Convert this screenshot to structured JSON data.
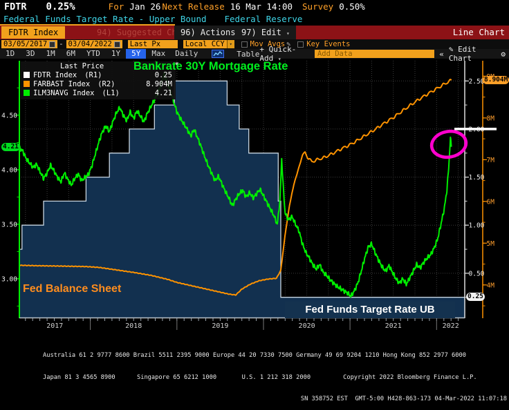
{
  "header": {
    "ticker": "FDTR",
    "last_value": "0.25%",
    "for_label": "For",
    "for_value": "Jan 26",
    "next_release_label": "Next Release",
    "next_release_value": "16 Mar 14:00",
    "survey_label": "Survey",
    "survey_value": "0.50%",
    "description": "Federal Funds Target Rate - Upper Bound",
    "source": "Federal Reserve"
  },
  "menubar": {
    "security_tab": "FDTR Index",
    "suggested_charts": "94) Suggested Charts",
    "actions": "96) Actions",
    "edit": "97) Edit",
    "chart_type": "Line Chart"
  },
  "toolbar": {
    "date_from": "03/05/2017",
    "date_to": "03/04/2022",
    "price_field": "Last Px",
    "currency": "Local CCY",
    "mov_avgs_label": "Mov Avgs",
    "key_events_label": "Key Events",
    "periods": [
      "1D",
      "3D",
      "1M",
      "6M",
      "YTD",
      "1Y",
      "5Y",
      "Max"
    ],
    "selected_period": "5Y",
    "frequency": "Daily",
    "table_label": "Table",
    "quick_add_label": "+ Quick-Add",
    "add_data_placeholder": "Add Data",
    "collapse_label": "«",
    "edit_chart_label": "✎ Edit Chart",
    "gear_icon": "⚙"
  },
  "legend": {
    "header": "Last Price",
    "items": [
      {
        "name": "FDTR Index",
        "axis": "(R1)",
        "value": "0.25",
        "color": "#ffffff"
      },
      {
        "name": "FARBAST Index",
        "axis": "(R2)",
        "value": "8.904M",
        "color": "#ff9300"
      },
      {
        "name": "ILM3NAVG Index",
        "axis": "(L1)",
        "value": "4.21",
        "color": "#00ee00"
      }
    ]
  },
  "annotations": {
    "mortgage_label": "Bankrate 30Y Mortgage Rate",
    "balance_sheet_label": "Fed Balance Sheet",
    "fdtr_label": "Fed Funds Target Rate UB",
    "highlight_circle_color": "#ff00cd",
    "white_line_level": 2.0
  },
  "chart_data": {
    "type": "line",
    "title": "FDTR Index - Line Chart",
    "x_axis": {
      "domain": [
        2017.18,
        2022.325
      ],
      "labels": [
        "2017",
        "2018",
        "2019",
        "2020",
        "2021",
        "2022"
      ]
    },
    "axes": {
      "L1": {
        "range": [
          2.645,
          4.999
        ],
        "ticks": [
          3.0,
          3.5,
          4.0,
          4.5
        ],
        "minor_step": 0.25,
        "last_price": "4.21",
        "color": "#00ee00",
        "label_color": "#f0f0f0"
      },
      "R1": {
        "range": [
          0.04,
          2.71
        ],
        "ticks": [
          0.5,
          1.0,
          1.5,
          2.0,
          2.5
        ],
        "minor_step": 0.25,
        "last_price": "0.25",
        "color": "#e0e0e0",
        "label_color": "#f0f0f0"
      },
      "R2": {
        "range": [
          3.22,
          9.37
        ],
        "tick_values": [
          4,
          5,
          6,
          7,
          8,
          9
        ],
        "tick_labels": [
          "4M",
          "5M",
          "6M",
          "7M",
          "8M",
          "9M"
        ],
        "minor_step": 0.5,
        "last_price": "8.904M",
        "color": "#ff9300",
        "label_color": "#ff9f2e"
      }
    },
    "series": [
      {
        "name": "FDTR Index",
        "axis": "R1",
        "style": "step-area",
        "line_color": "#c9d6e2",
        "fill_color": "#12304f",
        "points": [
          [
            2017.18,
            0.75
          ],
          [
            2017.21,
            1.0
          ],
          [
            2017.46,
            1.25
          ],
          [
            2017.95,
            1.5
          ],
          [
            2018.22,
            1.75
          ],
          [
            2018.45,
            2.0
          ],
          [
            2018.74,
            2.25
          ],
          [
            2018.97,
            2.5
          ],
          [
            2019.58,
            2.25
          ],
          [
            2019.72,
            2.0
          ],
          [
            2019.83,
            1.75
          ],
          [
            2020.17,
            1.25
          ],
          [
            2020.2,
            0.25
          ],
          [
            2022.33,
            0.25
          ]
        ]
      },
      {
        "name": "FARBAST Index",
        "axis": "R2",
        "style": "line",
        "line_color": "#ff9300",
        "points": [
          [
            2017.18,
            4.47
          ],
          [
            2017.4,
            4.46
          ],
          [
            2017.7,
            4.45
          ],
          [
            2017.95,
            4.44
          ],
          [
            2018.1,
            4.42
          ],
          [
            2018.3,
            4.36
          ],
          [
            2018.5,
            4.3
          ],
          [
            2018.7,
            4.23
          ],
          [
            2018.9,
            4.13
          ],
          [
            2019.0,
            4.06
          ],
          [
            2019.15,
            3.99
          ],
          [
            2019.3,
            3.92
          ],
          [
            2019.45,
            3.85
          ],
          [
            2019.6,
            3.78
          ],
          [
            2019.68,
            3.76
          ],
          [
            2019.75,
            3.9
          ],
          [
            2019.85,
            4.02
          ],
          [
            2019.95,
            4.1
          ],
          [
            2020.05,
            4.14
          ],
          [
            2020.15,
            4.16
          ],
          [
            2020.2,
            4.35
          ],
          [
            2020.25,
            5.2
          ],
          [
            2020.3,
            5.9
          ],
          [
            2020.35,
            6.4
          ],
          [
            2020.4,
            6.75
          ],
          [
            2020.45,
            7.1
          ],
          [
            2020.48,
            7.17
          ],
          [
            2020.52,
            7.03
          ],
          [
            2020.56,
            6.95
          ],
          [
            2020.62,
            7.0
          ],
          [
            2020.7,
            7.05
          ],
          [
            2020.8,
            7.15
          ],
          [
            2020.9,
            7.26
          ],
          [
            2021.0,
            7.36
          ],
          [
            2021.1,
            7.48
          ],
          [
            2021.2,
            7.61
          ],
          [
            2021.3,
            7.74
          ],
          [
            2021.4,
            7.88
          ],
          [
            2021.5,
            8.01
          ],
          [
            2021.6,
            8.16
          ],
          [
            2021.7,
            8.31
          ],
          [
            2021.8,
            8.45
          ],
          [
            2021.9,
            8.58
          ],
          [
            2022.0,
            8.7
          ],
          [
            2022.08,
            8.8
          ],
          [
            2022.17,
            8.904
          ]
        ]
      },
      {
        "name": "ILM3NAVG Index",
        "axis": "L1",
        "style": "line",
        "line_color": "#00ee00",
        "points": [
          [
            2017.18,
            4.2
          ],
          [
            2017.22,
            4.17
          ],
          [
            2017.26,
            4.1
          ],
          [
            2017.3,
            4.06
          ],
          [
            2017.34,
            4.02
          ],
          [
            2017.38,
            4.05
          ],
          [
            2017.42,
            3.98
          ],
          [
            2017.46,
            3.92
          ],
          [
            2017.5,
            3.97
          ],
          [
            2017.54,
            4.04
          ],
          [
            2017.58,
            3.99
          ],
          [
            2017.62,
            3.93
          ],
          [
            2017.66,
            3.89
          ],
          [
            2017.7,
            3.97
          ],
          [
            2017.74,
            3.91
          ],
          [
            2017.78,
            3.86
          ],
          [
            2017.82,
            3.92
          ],
          [
            2017.86,
            3.96
          ],
          [
            2017.9,
            3.9
          ],
          [
            2017.94,
            3.93
          ],
          [
            2017.98,
            3.96
          ],
          [
            2018.02,
            4.04
          ],
          [
            2018.06,
            4.15
          ],
          [
            2018.1,
            4.26
          ],
          [
            2018.14,
            4.35
          ],
          [
            2018.18,
            4.4
          ],
          [
            2018.22,
            4.35
          ],
          [
            2018.26,
            4.44
          ],
          [
            2018.3,
            4.52
          ],
          [
            2018.34,
            4.57
          ],
          [
            2018.38,
            4.5
          ],
          [
            2018.42,
            4.45
          ],
          [
            2018.46,
            4.53
          ],
          [
            2018.5,
            4.47
          ],
          [
            2018.54,
            4.54
          ],
          [
            2018.58,
            4.49
          ],
          [
            2018.62,
            4.44
          ],
          [
            2018.66,
            4.52
          ],
          [
            2018.7,
            4.58
          ],
          [
            2018.74,
            4.64
          ],
          [
            2018.78,
            4.71
          ],
          [
            2018.82,
            4.79
          ],
          [
            2018.85,
            4.88
          ],
          [
            2018.88,
            4.82
          ],
          [
            2018.92,
            4.74
          ],
          [
            2018.96,
            4.63
          ],
          [
            2019.0,
            4.53
          ],
          [
            2019.04,
            4.47
          ],
          [
            2019.08,
            4.42
          ],
          [
            2019.12,
            4.37
          ],
          [
            2019.16,
            4.31
          ],
          [
            2019.2,
            4.37
          ],
          [
            2019.24,
            4.29
          ],
          [
            2019.28,
            4.21
          ],
          [
            2019.32,
            4.12
          ],
          [
            2019.36,
            4.04
          ],
          [
            2019.4,
            3.97
          ],
          [
            2019.44,
            3.9
          ],
          [
            2019.48,
            3.94
          ],
          [
            2019.52,
            3.87
          ],
          [
            2019.56,
            3.8
          ],
          [
            2019.6,
            3.74
          ],
          [
            2019.64,
            3.67
          ],
          [
            2019.68,
            3.73
          ],
          [
            2019.72,
            3.78
          ],
          [
            2019.76,
            3.81
          ],
          [
            2019.8,
            3.75
          ],
          [
            2019.84,
            3.79
          ],
          [
            2019.88,
            3.74
          ],
          [
            2019.92,
            3.78
          ],
          [
            2019.96,
            3.82
          ],
          [
            2020.0,
            3.76
          ],
          [
            2020.04,
            3.7
          ],
          [
            2020.08,
            3.64
          ],
          [
            2020.12,
            3.58
          ],
          [
            2020.16,
            3.5
          ],
          [
            2020.19,
            3.72
          ],
          [
            2020.21,
            4.1
          ],
          [
            2020.23,
            3.82
          ],
          [
            2020.25,
            3.6
          ],
          [
            2020.29,
            3.54
          ],
          [
            2020.33,
            3.57
          ],
          [
            2020.37,
            3.5
          ],
          [
            2020.41,
            3.44
          ],
          [
            2020.45,
            3.32
          ],
          [
            2020.49,
            3.24
          ],
          [
            2020.53,
            3.19
          ],
          [
            2020.57,
            3.13
          ],
          [
            2020.61,
            3.09
          ],
          [
            2020.65,
            3.13
          ],
          [
            2020.69,
            3.06
          ],
          [
            2020.73,
            3.03
          ],
          [
            2020.77,
            2.99
          ],
          [
            2020.81,
            2.96
          ],
          [
            2020.85,
            2.93
          ],
          [
            2020.89,
            2.91
          ],
          [
            2020.93,
            2.89
          ],
          [
            2020.97,
            2.87
          ],
          [
            2021.01,
            2.84
          ],
          [
            2021.05,
            2.89
          ],
          [
            2021.09,
            2.96
          ],
          [
            2021.13,
            3.07
          ],
          [
            2021.17,
            3.19
          ],
          [
            2021.21,
            3.29
          ],
          [
            2021.25,
            3.32
          ],
          [
            2021.29,
            3.24
          ],
          [
            2021.33,
            3.17
          ],
          [
            2021.37,
            3.11
          ],
          [
            2021.41,
            3.07
          ],
          [
            2021.45,
            3.12
          ],
          [
            2021.49,
            3.06
          ],
          [
            2021.53,
            3.0
          ],
          [
            2021.57,
            2.96
          ],
          [
            2021.61,
            3.0
          ],
          [
            2021.65,
            2.95
          ],
          [
            2021.69,
            3.01
          ],
          [
            2021.73,
            3.07
          ],
          [
            2021.77,
            3.13
          ],
          [
            2021.81,
            3.1
          ],
          [
            2021.85,
            3.15
          ],
          [
            2021.89,
            3.19
          ],
          [
            2021.93,
            3.22
          ],
          [
            2021.97,
            3.28
          ],
          [
            2022.01,
            3.36
          ],
          [
            2022.05,
            3.5
          ],
          [
            2022.09,
            3.65
          ],
          [
            2022.12,
            3.82
          ],
          [
            2022.14,
            4.02
          ],
          [
            2022.16,
            4.29
          ],
          [
            2022.17,
            4.21
          ]
        ]
      }
    ]
  },
  "footer": {
    "line1": "Australia 61 2 9777 8600 Brazil 5511 2395 9000 Europe 44 20 7330 7500 Germany 49 69 9204 1210 Hong Kong 852 2977 6000",
    "line2": "Japan 81 3 4565 8900      Singapore 65 6212 1000       U.S. 1 212 318 2000         Copyright 2022 Bloomberg Finance L.P.",
    "line3": "SN 358752 EST  GMT-5:00 H428-863-173 04-Mar-2022 11:07:18"
  }
}
